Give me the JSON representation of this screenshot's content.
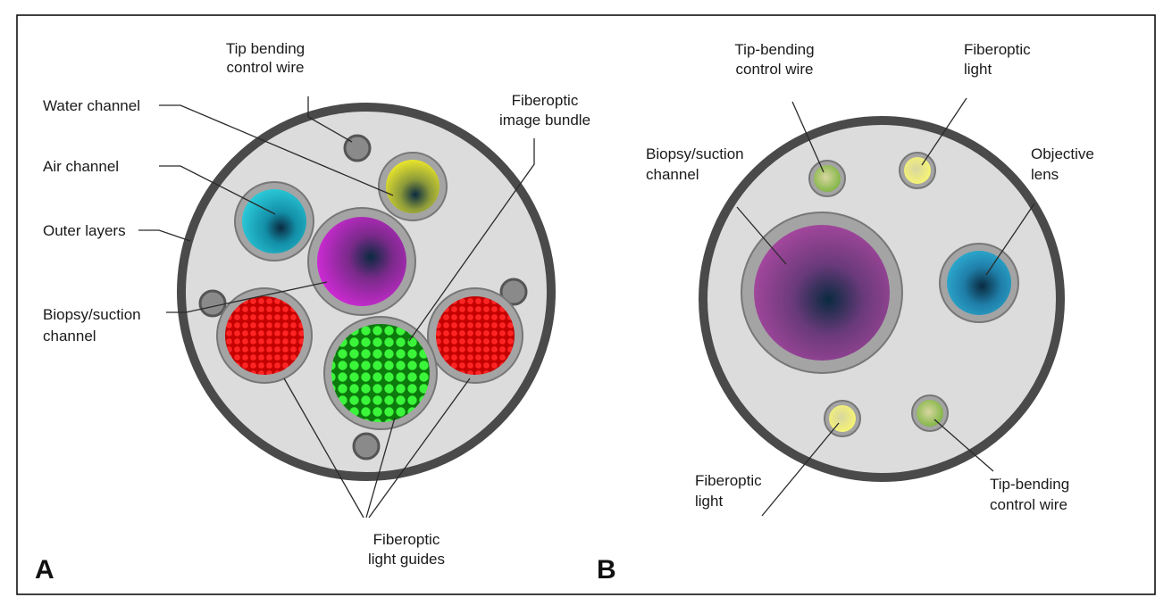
{
  "panels": [
    {
      "letter": "A",
      "labels": {
        "tip_wire": [
          "Tip bending",
          "control wire"
        ],
        "water": [
          "Water channel"
        ],
        "air": [
          "Air channel"
        ],
        "outer": [
          "Outer layers"
        ],
        "biopsy": [
          "Biopsy/suction",
          "channel"
        ],
        "image_bundle": [
          "Fiberoptic",
          "image bundle"
        ],
        "light_guides": [
          "Fiberoptic",
          "light guides"
        ]
      }
    },
    {
      "letter": "B",
      "labels": {
        "tip_wire_top": [
          "Tip-bending",
          "control wire"
        ],
        "light_top": [
          "Fiberoptic",
          "light"
        ],
        "biopsy": [
          "Biopsy/suction",
          "channel"
        ],
        "objective": [
          "Objective",
          "lens"
        ],
        "light_bottom": [
          "Fiberoptic",
          "light"
        ],
        "tip_wire_bottom": [
          "Tip-bending",
          "control wire"
        ]
      }
    }
  ],
  "colors": {
    "sheath": "#4a4a4a",
    "body": "#dcdcdc",
    "ring": "#9a9a9a",
    "air": "#1ab6c8",
    "water": "#e8e22a",
    "biopsy_a": "#c21ac8",
    "light_guide": "#e01818",
    "image_bundle": "#22ee22",
    "biopsy_b": "#9a3f92",
    "objective": "#1a8ab8",
    "wire_b": "#8cc04a",
    "light_b": "#f2f07a"
  }
}
